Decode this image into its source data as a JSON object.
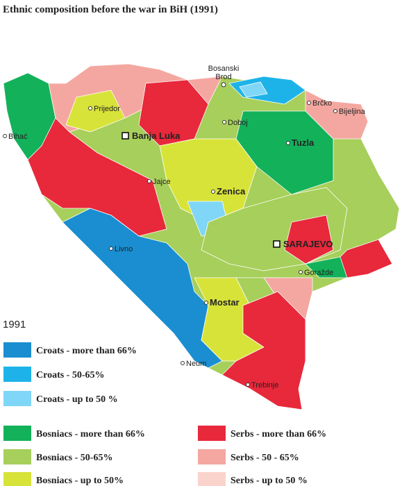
{
  "title": "Ethnic composition before the war in BiH (1991)",
  "year": "1991",
  "cities": [
    {
      "lines": [
        "Bosanski",
        "Brod"
      ]
    },
    {
      "label": "Prijedor"
    },
    {
      "label": "Banja Luka"
    },
    {
      "label": "Doboj"
    },
    {
      "label": "Brčko"
    },
    {
      "label": "Bijeljina"
    },
    {
      "label": "Bihać"
    },
    {
      "label": "Tuzla"
    },
    {
      "label": "Jajce"
    },
    {
      "label": "Zenica"
    },
    {
      "label": "Livno"
    },
    {
      "label": "SARAJEVO"
    },
    {
      "label": "Goražde"
    },
    {
      "label": "Mostar"
    },
    {
      "label": "Neum"
    },
    {
      "label": "Trebinje"
    }
  ],
  "legend": [
    {
      "label": "Croats - more than 66%",
      "color": "#1a8ed0"
    },
    {
      "label": "Croats - 50-65%",
      "color": "#1eb3e8"
    },
    {
      "label": "Croats - up to 50 %",
      "color": "#80d6f6"
    },
    {
      "label": "Bosniacs - more than 66%",
      "color": "#13b15a"
    },
    {
      "label": "Bosniacs - 50-65%",
      "color": "#a7cf5b"
    },
    {
      "label": "Bosniacs - up to 50%",
      "color": "#d8e33a"
    },
    {
      "label": "Serbs - more than 66%",
      "color": "#e8283b"
    },
    {
      "label": "Serbs - 50 - 65%",
      "color": "#f4a7a0"
    },
    {
      "label": "Serbs - up to 50 %",
      "color": "#fad4cc"
    }
  ]
}
